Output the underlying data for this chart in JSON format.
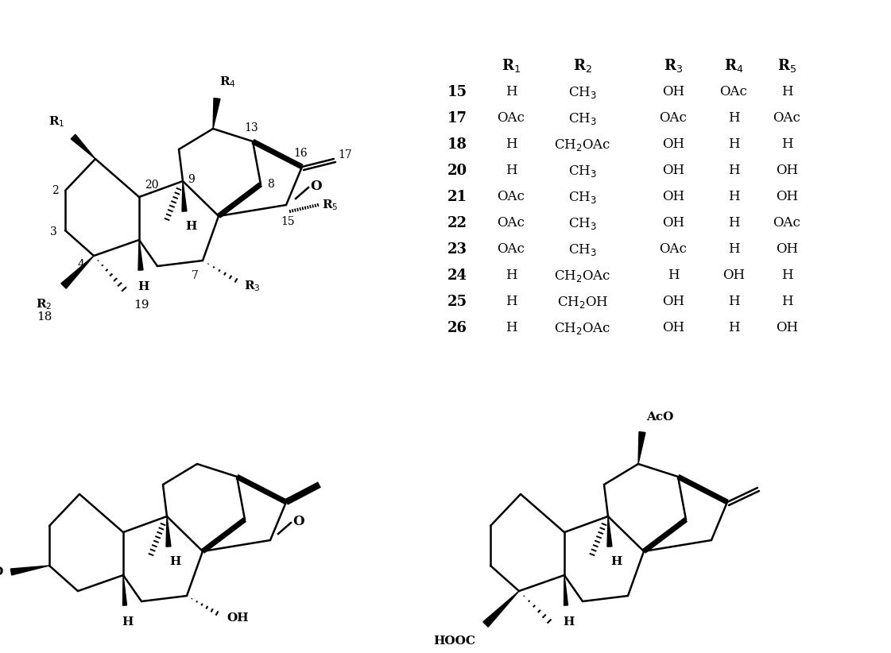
{
  "bg_color": "#ffffff",
  "table": {
    "col_nums": [
      "15",
      "17",
      "18",
      "20",
      "21",
      "22",
      "23",
      "24",
      "25",
      "26"
    ],
    "R1": [
      "H",
      "OAc",
      "H",
      "H",
      "OAc",
      "OAc",
      "OAc",
      "H",
      "H",
      "H"
    ],
    "R2": [
      "CH$_3$",
      "CH$_3$",
      "CH$_2$OAc",
      "CH$_3$",
      "CH$_3$",
      "CH$_3$",
      "CH$_3$",
      "CH$_2$OAc",
      "CH$_2$OH",
      "CH$_2$OAc"
    ],
    "R3": [
      "OH",
      "OAc",
      "OH",
      "OH",
      "OH",
      "OH",
      "OAc",
      "H",
      "OH",
      "OH"
    ],
    "R4": [
      "OAc",
      "H",
      "H",
      "H",
      "H",
      "H",
      "H",
      "OH",
      "H",
      "H"
    ],
    "R5": [
      "H",
      "OAc",
      "H",
      "OH",
      "OH",
      "OAc",
      "OH",
      "H",
      "H",
      "OH"
    ]
  }
}
